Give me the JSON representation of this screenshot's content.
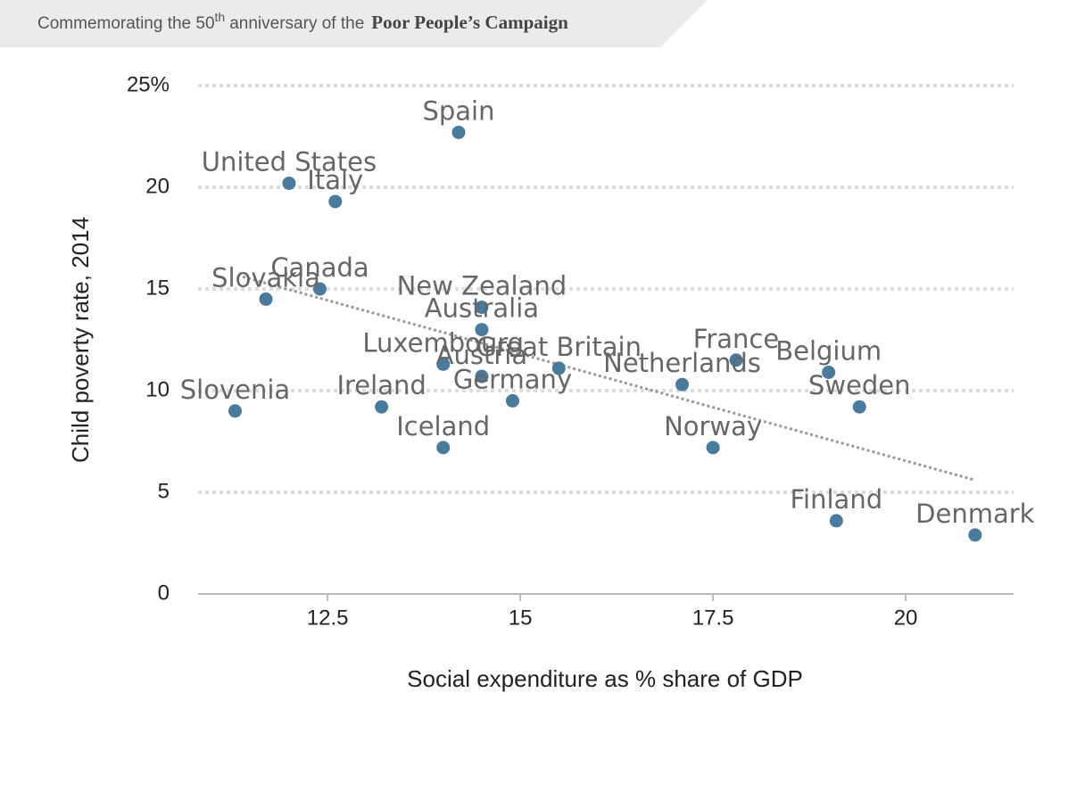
{
  "header": {
    "prefix": "Commemorating the 50",
    "superscript": "th",
    "suffix": "anniversary of the",
    "campaign": "Poor People’s Campaign"
  },
  "chart_data": {
    "type": "scatter",
    "x_label": "Social expenditure as % share of GDP",
    "y_label": "Child poverty rate, 2014",
    "labels": [
      "Spain",
      "United States",
      "Italy",
      "Slovakia",
      "Canada",
      "New Zealand",
      "Australia",
      "Luxembourg",
      "Austria",
      "Great Britain",
      "Germany",
      "Ireland",
      "Iceland",
      "Slovenia",
      "Netherlands",
      "France",
      "Norway",
      "Belgium",
      "Sweden",
      "Finland",
      "Denmark"
    ],
    "x": [
      14.2,
      12.0,
      12.6,
      11.7,
      12.4,
      14.5,
      14.5,
      14.0,
      14.5,
      15.5,
      14.9,
      13.2,
      14.0,
      11.3,
      17.1,
      17.8,
      17.5,
      19.0,
      19.4,
      19.1,
      20.9
    ],
    "y": [
      22.7,
      20.2,
      19.3,
      14.5,
      15.0,
      14.1,
      13.0,
      11.3,
      10.7,
      11.1,
      9.5,
      9.2,
      7.2,
      9.0,
      10.3,
      11.5,
      7.2,
      10.9,
      9.2,
      3.6,
      2.9
    ],
    "color": "#4a7a9c",
    "trendline": {
      "x": [
        11.4,
        20.9
      ],
      "y": [
        15.6,
        5.6
      ],
      "color": "#999999"
    },
    "xlim": [
      10.82,
      21.4
    ],
    "ylim": [
      0,
      25
    ],
    "xticks": [
      12.5,
      15,
      17.5,
      20
    ],
    "yticks": [
      0,
      5,
      10,
      15,
      20,
      {
        "value": 25,
        "label": "25%"
      }
    ],
    "grid": true
  }
}
